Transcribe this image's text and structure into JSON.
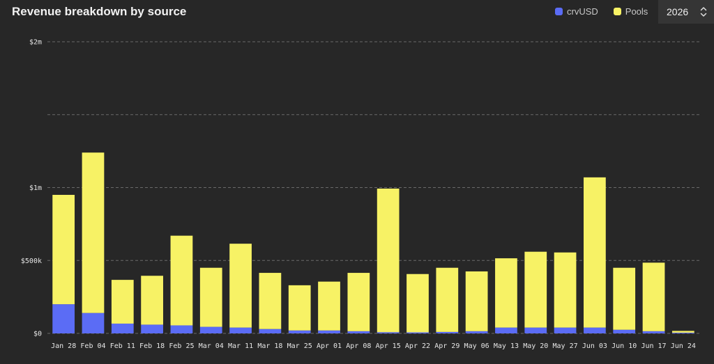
{
  "header": {
    "title": "Revenue breakdown by source",
    "year": "2026"
  },
  "legend": [
    {
      "label": "crvUSD",
      "color": "#5b6cf5"
    },
    {
      "label": "Pools",
      "color": "#f7f265"
    }
  ],
  "chart_data": {
    "type": "bar",
    "stacked": true,
    "title": "Revenue breakdown by source",
    "xlabel": "",
    "ylabel": "",
    "ylim": [
      0,
      2000000
    ],
    "grid": true,
    "legend_position": "top-right",
    "y_ticks": [
      {
        "value": 0,
        "label": "$0"
      },
      {
        "value": 500000,
        "label": "$500k"
      },
      {
        "value": 1000000,
        "label": "$1m"
      },
      {
        "value": 1500000,
        "label": ""
      },
      {
        "value": 2000000,
        "label": "$2m"
      }
    ],
    "categories": [
      "Jan 28",
      "Feb 04",
      "Feb 11",
      "Feb 18",
      "Feb 25",
      "Mar 04",
      "Mar 11",
      "Mar 18",
      "Mar 25",
      "Apr 01",
      "Apr 08",
      "Apr 15",
      "Apr 22",
      "Apr 29",
      "May 06",
      "May 13",
      "May 20",
      "May 27",
      "Jun 03",
      "Jun 10",
      "Jun 17",
      "Jun 24"
    ],
    "series": [
      {
        "name": "crvUSD",
        "color": "#5b6cf5",
        "values": [
          200000,
          140000,
          67000,
          60000,
          55000,
          45000,
          40000,
          30000,
          20000,
          20000,
          15000,
          8000,
          7000,
          10000,
          15000,
          40000,
          40000,
          40000,
          40000,
          25000,
          15000,
          5000
        ]
      },
      {
        "name": "Pools",
        "color": "#f7f265",
        "values": [
          750000,
          1100000,
          300000,
          335000,
          615000,
          405000,
          575000,
          385000,
          310000,
          335000,
          400000,
          985000,
          400000,
          440000,
          410000,
          475000,
          520000,
          515000,
          1030000,
          425000,
          470000,
          12000
        ]
      }
    ]
  }
}
